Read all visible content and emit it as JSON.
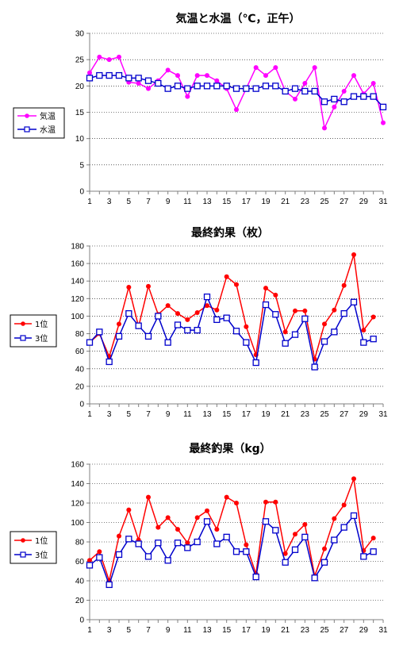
{
  "chart_data": [
    {
      "type": "line",
      "title": "気温と水温（℃，正午）",
      "xlabel": "",
      "ylabel": "",
      "x": [
        1,
        2,
        3,
        4,
        5,
        6,
        7,
        8,
        9,
        10,
        11,
        12,
        13,
        14,
        15,
        16,
        17,
        18,
        19,
        20,
        21,
        22,
        23,
        24,
        25,
        26,
        27,
        28,
        29,
        30,
        31
      ],
      "xticks": [
        1,
        3,
        5,
        7,
        9,
        11,
        13,
        15,
        17,
        19,
        21,
        23,
        25,
        27,
        29,
        31
      ],
      "ylim": [
        0,
        30
      ],
      "yticks": [
        0,
        5,
        10,
        15,
        20,
        25,
        30
      ],
      "grid": true,
      "legend_position": "left",
      "series": [
        {
          "name": "気温",
          "color": "#FF00FF",
          "marker": "circle-filled",
          "values": [
            22.5,
            25.5,
            25.0,
            25.5,
            20.7,
            20.5,
            19.5,
            21.0,
            23.0,
            22.0,
            18.0,
            22.0,
            22.0,
            21.0,
            19.5,
            15.5,
            19.5,
            23.5,
            22.0,
            23.5,
            19.0,
            17.5,
            20.5,
            23.5,
            12.0,
            16.0,
            19.0,
            22.0,
            18.5,
            20.5,
            13.0
          ]
        },
        {
          "name": "水温",
          "color": "#0000CC",
          "marker": "square-open",
          "values": [
            21.5,
            22.0,
            22.0,
            22.0,
            21.5,
            21.5,
            21.0,
            20.5,
            19.5,
            20.0,
            19.5,
            20.0,
            20.0,
            20.0,
            20.0,
            19.5,
            19.5,
            19.5,
            20.0,
            20.0,
            19.0,
            19.5,
            19.0,
            19.0,
            17.0,
            17.5,
            17.0,
            18.0,
            18.0,
            18.0,
            16.0
          ]
        }
      ]
    },
    {
      "type": "line",
      "title": "最終釣果（枚）",
      "xlabel": "",
      "ylabel": "",
      "x": [
        1,
        2,
        3,
        4,
        5,
        6,
        7,
        8,
        9,
        10,
        11,
        12,
        13,
        14,
        15,
        16,
        17,
        18,
        19,
        20,
        21,
        22,
        23,
        24,
        25,
        26,
        27,
        28,
        29,
        30
      ],
      "xticks": [
        1,
        3,
        5,
        7,
        9,
        11,
        13,
        15,
        17,
        19,
        21,
        23,
        25,
        27,
        29,
        31
      ],
      "xlim": [
        1,
        31
      ],
      "ylim": [
        0,
        180
      ],
      "yticks": [
        0,
        20,
        40,
        60,
        80,
        100,
        120,
        140,
        160,
        180
      ],
      "grid": true,
      "legend_position": "left",
      "series": [
        {
          "name": "1位",
          "color": "#FF0000",
          "marker": "circle-filled",
          "values": [
            70,
            80,
            54,
            91,
            133,
            88,
            134,
            102,
            112,
            103,
            96,
            104,
            112,
            107,
            145,
            136,
            88,
            56,
            132,
            124,
            82,
            106,
            106,
            51,
            91,
            107,
            135,
            170,
            84,
            99
          ]
        },
        {
          "name": "3位",
          "color": "#0000CC",
          "marker": "square-open",
          "values": [
            70,
            82,
            48,
            77,
            103,
            89,
            77,
            100,
            70,
            90,
            84,
            84,
            122,
            96,
            98,
            83,
            70,
            47,
            113,
            102,
            69,
            79,
            97,
            42,
            71,
            82,
            103,
            116,
            70,
            74
          ]
        }
      ]
    },
    {
      "type": "line",
      "title": "最終釣果（kg）",
      "xlabel": "",
      "ylabel": "",
      "x": [
        1,
        2,
        3,
        4,
        5,
        6,
        7,
        8,
        9,
        10,
        11,
        12,
        13,
        14,
        15,
        16,
        17,
        18,
        19,
        20,
        21,
        22,
        23,
        24,
        25,
        26,
        27,
        28,
        29,
        30
      ],
      "xticks": [
        1,
        3,
        5,
        7,
        9,
        11,
        13,
        15,
        17,
        19,
        21,
        23,
        25,
        27,
        29,
        31
      ],
      "xlim": [
        1,
        31
      ],
      "ylim": [
        0,
        160
      ],
      "yticks": [
        0,
        20,
        40,
        60,
        80,
        100,
        120,
        140,
        160
      ],
      "grid": true,
      "legend_position": "left",
      "series": [
        {
          "name": "1位",
          "color": "#FF0000",
          "marker": "circle-filled",
          "values": [
            61,
            70,
            40,
            86,
            113,
            82,
            126,
            95,
            105,
            93,
            79,
            105,
            112,
            93,
            126,
            120,
            77,
            47,
            121,
            121,
            68,
            88,
            98,
            45,
            73,
            104,
            118,
            145,
            71,
            84
          ]
        },
        {
          "name": "3位",
          "color": "#0000CC",
          "marker": "square-open",
          "values": [
            56,
            64,
            36,
            67,
            83,
            78,
            65,
            79,
            61,
            79,
            74,
            80,
            101,
            78,
            85,
            70,
            70,
            44,
            101,
            92,
            59,
            72,
            85,
            43,
            59,
            82,
            95,
            107,
            65,
            70
          ]
        }
      ]
    }
  ]
}
